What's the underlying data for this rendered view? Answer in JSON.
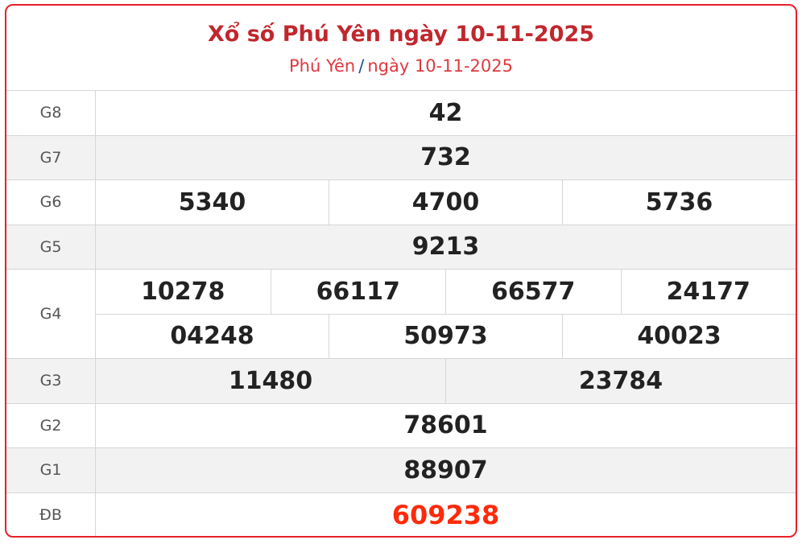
{
  "header": {
    "title": "Xổ số Phú Yên ngày 10-11-2025",
    "crumb_province": "Phú Yên",
    "crumb_sep": "/",
    "crumb_date": "ngày 10-11-2025"
  },
  "prizes": {
    "g8": {
      "label": "G8",
      "values": [
        "42"
      ]
    },
    "g7": {
      "label": "G7",
      "values": [
        "732"
      ]
    },
    "g6": {
      "label": "G6",
      "values": [
        "5340",
        "4700",
        "5736"
      ]
    },
    "g5": {
      "label": "G5",
      "values": [
        "9213"
      ]
    },
    "g4": {
      "label": "G4",
      "values": [
        "10278",
        "66117",
        "66577",
        "24177",
        "04248",
        "50973",
        "40023"
      ]
    },
    "g3": {
      "label": "G3",
      "values": [
        "11480",
        "23784"
      ]
    },
    "g2": {
      "label": "G2",
      "values": [
        "78601"
      ]
    },
    "g1": {
      "label": "G1",
      "values": [
        "88907"
      ]
    },
    "db": {
      "label": "ĐB",
      "values": [
        "609238"
      ]
    }
  },
  "colors": {
    "border": "#e8202a",
    "title": "#c0272d",
    "special": "#ff2a0a"
  }
}
